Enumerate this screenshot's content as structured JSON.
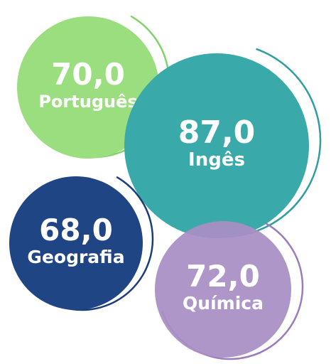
{
  "chart_data": {
    "type": "bubble",
    "categories": [
      "Português",
      "Ingês",
      "Geografia",
      "Química"
    ],
    "values": [
      "70,0",
      "87,0",
      "68,0",
      "72,0"
    ],
    "series": [
      {
        "label": "Português",
        "value_text": "70,0",
        "value": 70.0,
        "color": "#9ade7f",
        "ring_color": "#7fd36a"
      },
      {
        "label": "Ingês",
        "value_text": "87,0",
        "value": 87.0,
        "color": "#3aa9aa",
        "ring_color": "#2f9ea2"
      },
      {
        "label": "Geografia",
        "value_text": "68,0",
        "value": 68.0,
        "color": "#1f4585",
        "ring_color": "#1b3d78"
      },
      {
        "label": "Química",
        "value_text": "72,0",
        "value": 72.0,
        "color": "#a98ec4",
        "ring_color": "#9a7cbd"
      }
    ]
  }
}
